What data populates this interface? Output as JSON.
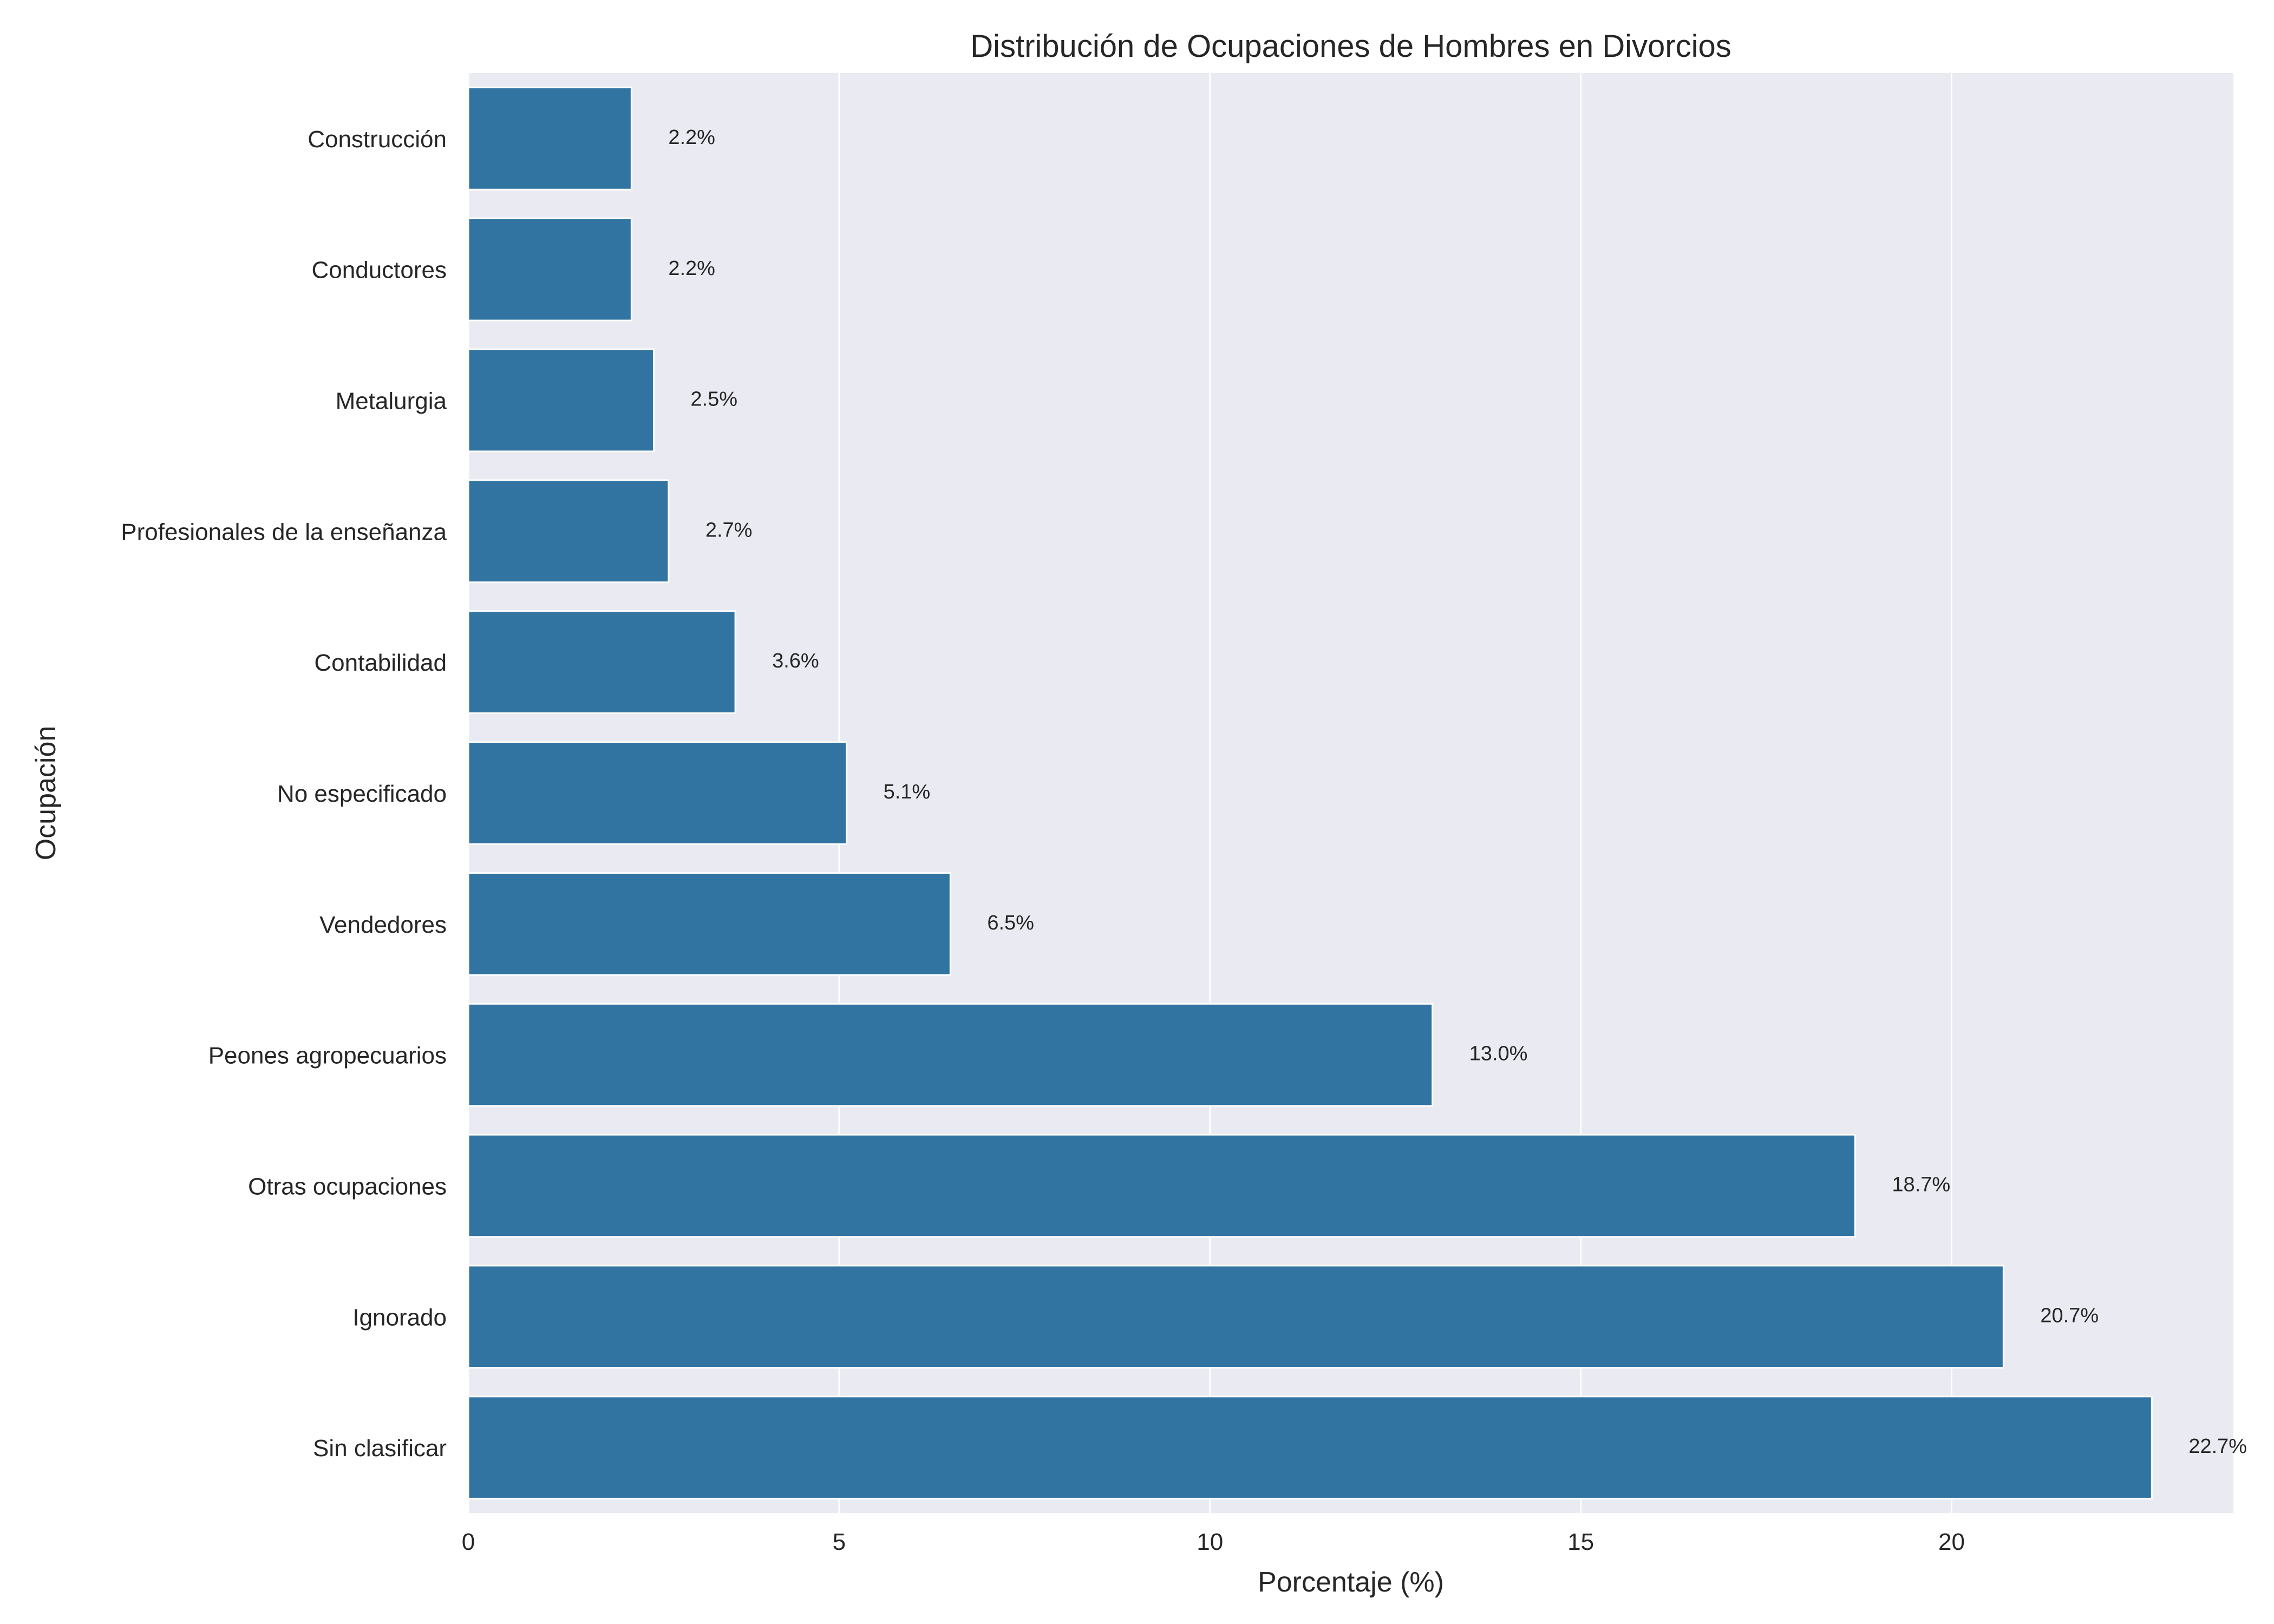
{
  "chart_data": {
    "type": "bar",
    "orientation": "horizontal",
    "title": "Distribución de Ocupaciones de Hombres en Divorcios",
    "xlabel": "Porcentaje (%)",
    "ylabel": "Ocupación",
    "xlim": [
      0,
      23.8
    ],
    "xticks": [
      0,
      5,
      10,
      15,
      20
    ],
    "grid": true,
    "categories": [
      "Construcción",
      "Conductores",
      "Metalurgia",
      "Profesionales de la enseñanza",
      "Contabilidad",
      "No especificado",
      "Vendedores",
      "Peones agropecuarios",
      "Otras ocupaciones",
      "Ignorado",
      "Sin clasificar"
    ],
    "values": [
      2.2,
      2.2,
      2.5,
      2.7,
      3.6,
      5.1,
      6.5,
      13.0,
      18.7,
      20.7,
      22.7
    ],
    "data_labels": [
      "2.2%",
      "2.2%",
      "2.5%",
      "2.7%",
      "3.6%",
      "5.1%",
      "6.5%",
      "13.0%",
      "18.7%",
      "20.7%",
      "22.7%"
    ],
    "colors": {
      "bar": "#3274a1",
      "plot_background": "#eaeaf2",
      "grid": "#ffffff",
      "text": "#262626"
    }
  }
}
